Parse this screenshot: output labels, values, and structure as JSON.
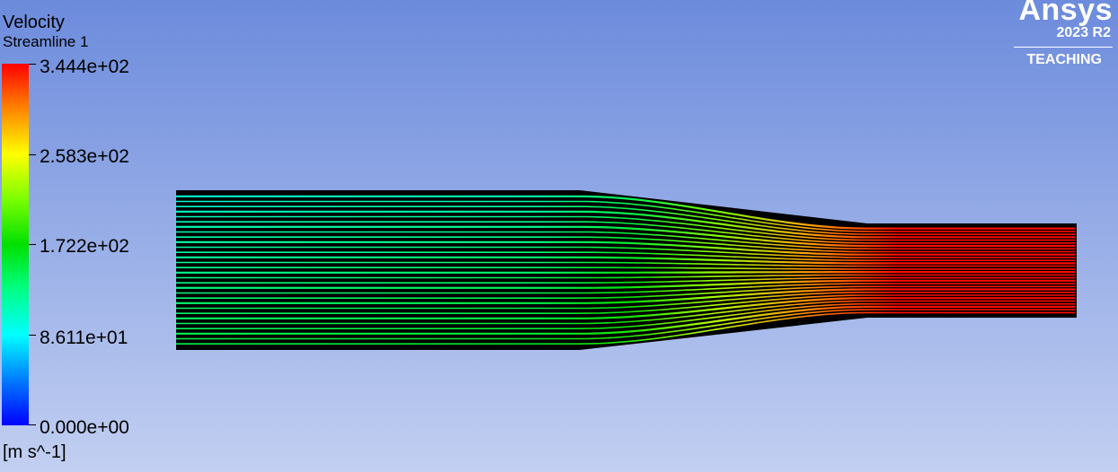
{
  "legend": {
    "title": "Velocity",
    "subtitle": "Streamline 1",
    "units": "[m s^-1]",
    "min": 0.0,
    "max": 344.4,
    "tick_labels": [
      "3.444e+02",
      "2.583e+02",
      "1.722e+02",
      "8.611e+01",
      "0.000e+00"
    ],
    "colormap": [
      "#0000ff",
      "#0080ff",
      "#00ffff",
      "#00ff80",
      "#00e000",
      "#80ff00",
      "#ffff00",
      "#ff8000",
      "#ff0000"
    ]
  },
  "logo": {
    "brand": "Ansys",
    "version": "2023 R2",
    "edition": "TEACHING"
  },
  "scene": {
    "geometry": "converging nozzle",
    "streamline_color": "velocity",
    "streamline_count": 30
  }
}
